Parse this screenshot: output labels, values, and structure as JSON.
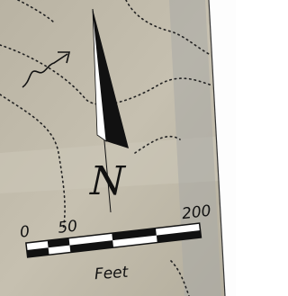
{
  "north_arrow": {
    "label": "N"
  },
  "scale_bar": {
    "labels": [
      "0",
      "50",
      "200"
    ],
    "unit": "Feet"
  }
}
